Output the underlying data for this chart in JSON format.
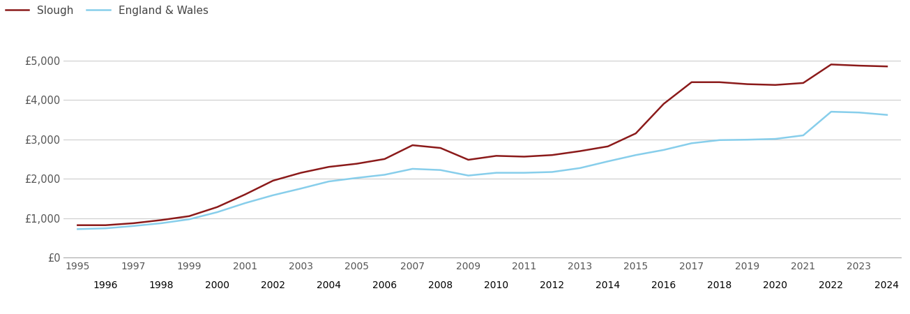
{
  "slough_years": [
    1995,
    1996,
    1997,
    1998,
    1999,
    2000,
    2001,
    2002,
    2003,
    2004,
    2005,
    2006,
    2007,
    2008,
    2009,
    2010,
    2011,
    2012,
    2013,
    2014,
    2015,
    2016,
    2017,
    2018,
    2019,
    2020,
    2021,
    2022,
    2023,
    2024
  ],
  "slough_values": [
    820,
    820,
    870,
    950,
    1050,
    1280,
    1600,
    1950,
    2150,
    2300,
    2380,
    2500,
    2850,
    2780,
    2480,
    2580,
    2560,
    2600,
    2700,
    2820,
    3150,
    3900,
    4450,
    4450,
    4400,
    4380,
    4430,
    4900,
    4870,
    4850
  ],
  "ew_years": [
    1995,
    1996,
    1997,
    1998,
    1999,
    2000,
    2001,
    2002,
    2003,
    2004,
    2005,
    2006,
    2007,
    2008,
    2009,
    2010,
    2011,
    2012,
    2013,
    2014,
    2015,
    2016,
    2017,
    2018,
    2019,
    2020,
    2021,
    2022,
    2023,
    2024
  ],
  "ew_values": [
    720,
    740,
    800,
    870,
    970,
    1150,
    1380,
    1580,
    1750,
    1930,
    2020,
    2100,
    2250,
    2220,
    2080,
    2150,
    2150,
    2170,
    2270,
    2440,
    2600,
    2730,
    2900,
    2980,
    2990,
    3010,
    3100,
    3700,
    3680,
    3620
  ],
  "slough_color": "#8B1A1A",
  "ew_color": "#87CEEB",
  "slough_label": "Slough",
  "ew_label": "England & Wales",
  "ylim": [
    0,
    5500
  ],
  "yticks": [
    0,
    1000,
    2000,
    3000,
    4000,
    5000
  ],
  "ytick_labels": [
    "£0",
    "£1,000",
    "£2,000",
    "£3,000",
    "£4,000",
    "£5,000"
  ],
  "odd_xticks": [
    1995,
    1997,
    1999,
    2001,
    2003,
    2005,
    2007,
    2009,
    2011,
    2013,
    2015,
    2017,
    2019,
    2021,
    2023
  ],
  "even_xticks": [
    1996,
    1998,
    2000,
    2002,
    2004,
    2006,
    2008,
    2010,
    2012,
    2014,
    2016,
    2018,
    2020,
    2022,
    2024
  ],
  "line_width": 1.8,
  "background_color": "#ffffff",
  "grid_color": "#cccccc",
  "xlim_left": 1994.5,
  "xlim_right": 2024.5
}
